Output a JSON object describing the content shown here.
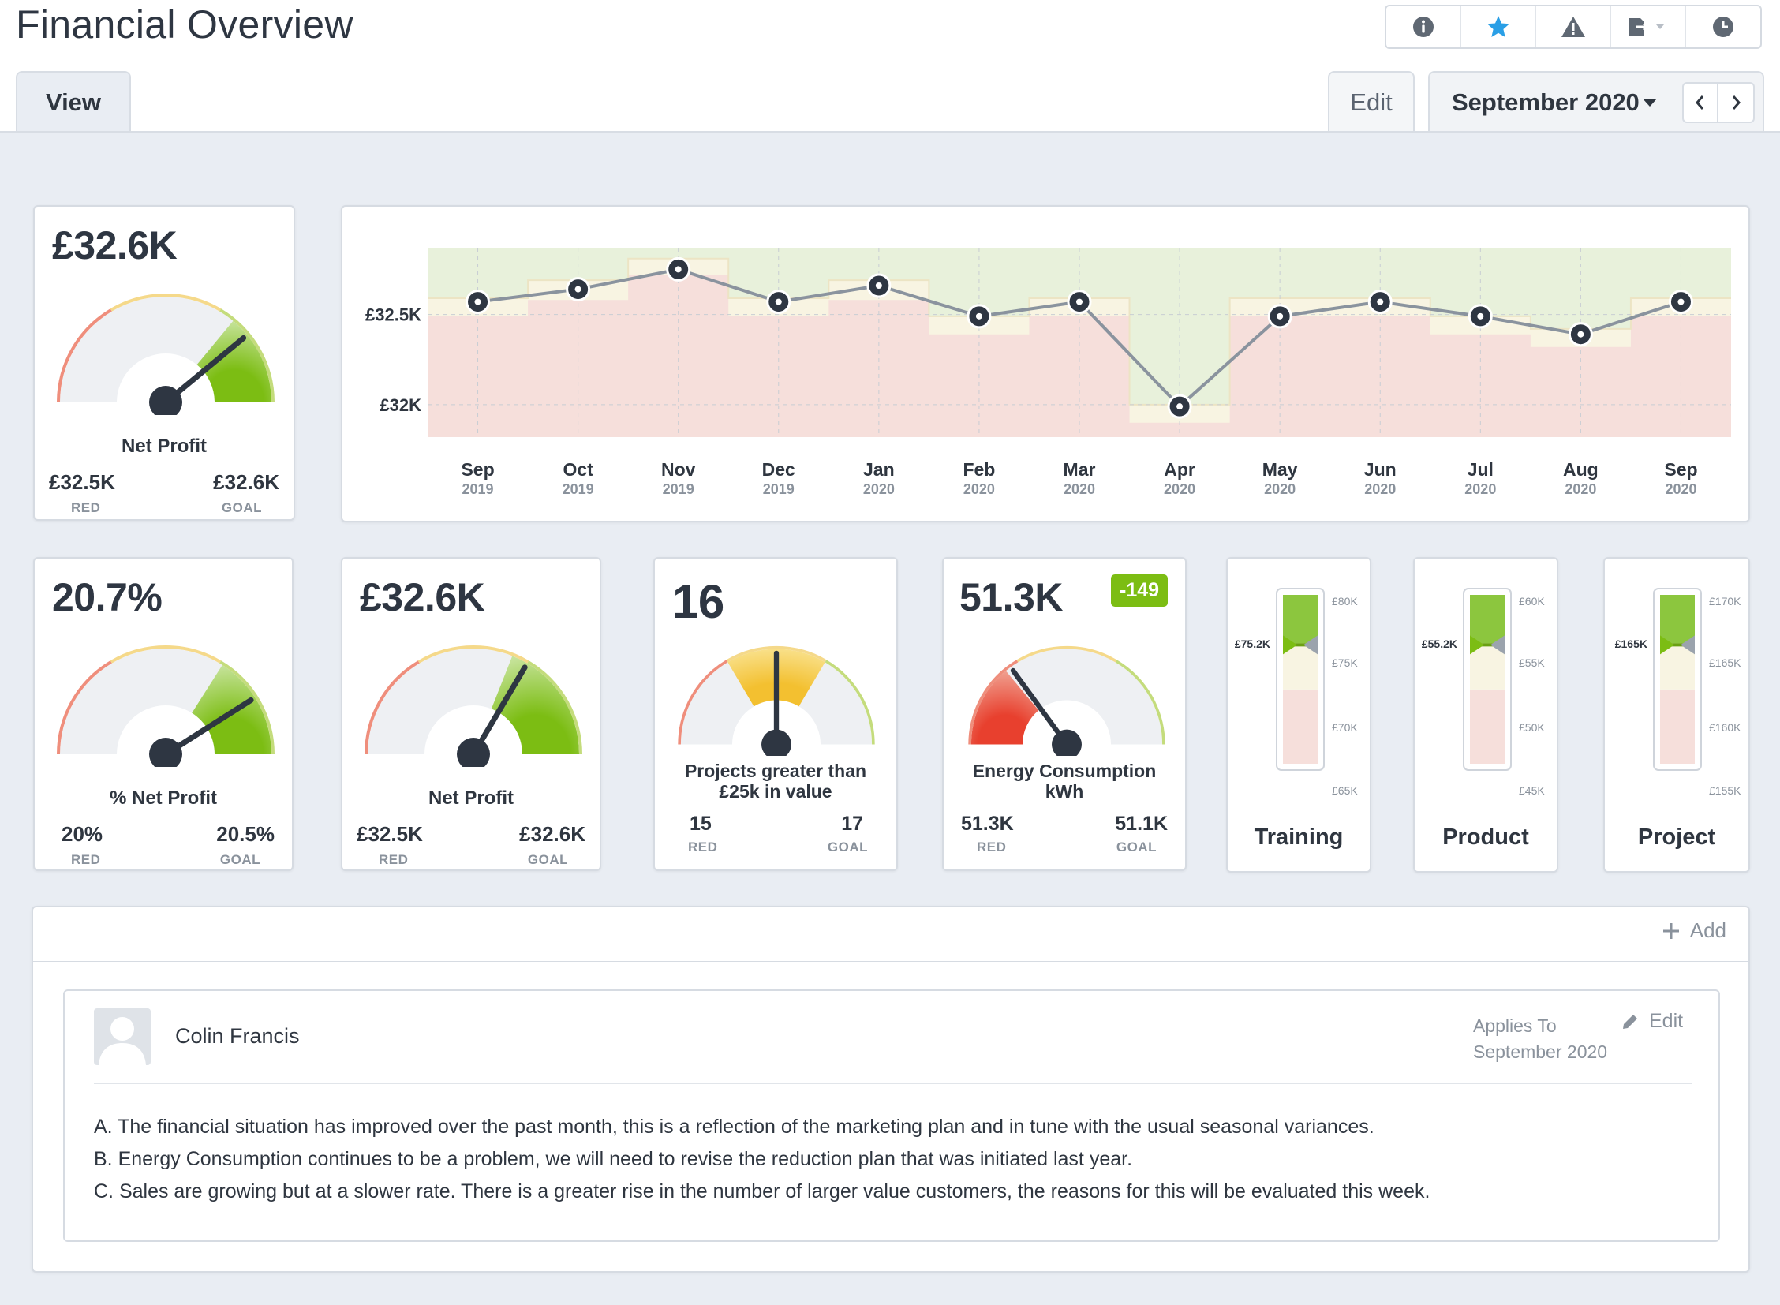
{
  "header": {
    "title": "Financial Overview",
    "toolbar": [
      "info-icon",
      "star-icon",
      "alert-icon",
      "export-icon",
      "history-icon"
    ]
  },
  "tabs": {
    "view": "View",
    "edit": "Edit",
    "period": "September 2020"
  },
  "colors": {
    "good": "#7cbd13",
    "warning": "#f3c844",
    "bad": "#e8453c",
    "red_zone": "#f6dfdb",
    "amber_zone": "#f8f4e2",
    "green_zone": "#e8f1db",
    "line": "#8a939e",
    "background": "#e9edf3"
  },
  "kpis": {
    "net_profit_main": {
      "value": "£32.6K",
      "label": "Net Profit",
      "red_value": "£32.5K",
      "red_caption": "RED",
      "goal_value": "£32.6K",
      "goal_caption": "GOAL",
      "level": 0.78
    },
    "pct_net_profit": {
      "value": "20.7%",
      "label": "% Net Profit",
      "red_value": "20%",
      "red_caption": "RED",
      "goal_value": "20.5%",
      "goal_caption": "GOAL",
      "level": 0.82
    },
    "net_profit": {
      "value": "£32.6K",
      "label": "Net Profit",
      "red_value": "£32.5K",
      "red_caption": "RED",
      "goal_value": "£32.6K",
      "goal_caption": "GOAL",
      "level": 0.67
    },
    "projects": {
      "value": "16",
      "label_line1": "Projects greater than",
      "label_line2": "£25k in value",
      "red_value": "15",
      "red_caption": "RED",
      "goal_value": "17",
      "goal_caption": "GOAL",
      "level": 0.5
    },
    "energy": {
      "value": "51.3K",
      "badge": "-149",
      "label_line1": "Energy Consumption",
      "label_line2": "kWh",
      "red_value": "51.3K",
      "red_caption": "RED",
      "goal_value": "51.1K",
      "goal_caption": "GOAL",
      "level": 0.3
    }
  },
  "thermometers": [
    {
      "name": "Training",
      "current": "£75.2K",
      "ticks": [
        "£80K",
        "£75K",
        "£70K",
        "£65K"
      ],
      "level": 0.76
    },
    {
      "name": "Product",
      "current": "£55.2K",
      "ticks": [
        "£60K",
        "£55K",
        "£50K",
        "£45K"
      ],
      "level": 0.76
    },
    {
      "name": "Project",
      "current": "£165K",
      "ticks": [
        "£170K",
        "£165K",
        "£160K",
        "£155K"
      ],
      "level": 0.76
    }
  ],
  "chart_data": {
    "type": "line",
    "x": [
      "Sep 2019",
      "Oct 2019",
      "Nov 2019",
      "Dec 2019",
      "Jan 2020",
      "Feb 2020",
      "Mar 2020",
      "Apr 2020",
      "May 2020",
      "Jun 2020",
      "Jul 2020",
      "Aug 2020",
      "Sep 2020"
    ],
    "x_months": [
      "Sep",
      "Oct",
      "Nov",
      "Dec",
      "Jan",
      "Feb",
      "Mar",
      "Apr",
      "May",
      "Jun",
      "Jul",
      "Aug",
      "Sep"
    ],
    "x_years": [
      "2019",
      "2019",
      "2019",
      "2019",
      "2020",
      "2020",
      "2020",
      "2020",
      "2020",
      "2020",
      "2020",
      "2020",
      "2020"
    ],
    "values": [
      32.57,
      32.64,
      32.75,
      32.57,
      32.66,
      32.49,
      32.57,
      31.99,
      32.49,
      32.57,
      32.49,
      32.39,
      32.57
    ],
    "red_threshold": [
      32.49,
      32.58,
      32.72,
      32.49,
      32.58,
      32.39,
      32.49,
      31.9,
      32.49,
      32.49,
      32.39,
      32.32,
      32.49
    ],
    "goal_threshold": [
      32.59,
      32.69,
      32.81,
      32.59,
      32.69,
      32.49,
      32.59,
      32.0,
      32.59,
      32.59,
      32.49,
      32.42,
      32.59
    ],
    "yticks": [
      "£32.5K",
      "£32K"
    ],
    "ytick_values": [
      32.5,
      32.0
    ],
    "ylim": [
      31.82,
      32.87
    ],
    "grid": true
  },
  "comments": {
    "add_label": "Add",
    "items": [
      {
        "author": "Colin Francis",
        "applies_label": "Applies To",
        "applies_value": "September 2020",
        "edit_label": "Edit",
        "lines": [
          "A. The financial situation has improved over the past month, this is a reflection of the marketing plan and in tune with the usual seasonal variances.",
          "B. Energy Consumption continues to be a problem, we will need to revise the reduction plan that was initiated last year.",
          "C. Sales are growing but at a slower rate. There is a greater rise in the number of larger value customers, the reasons for this will be evaluated this week."
        ]
      }
    ]
  }
}
